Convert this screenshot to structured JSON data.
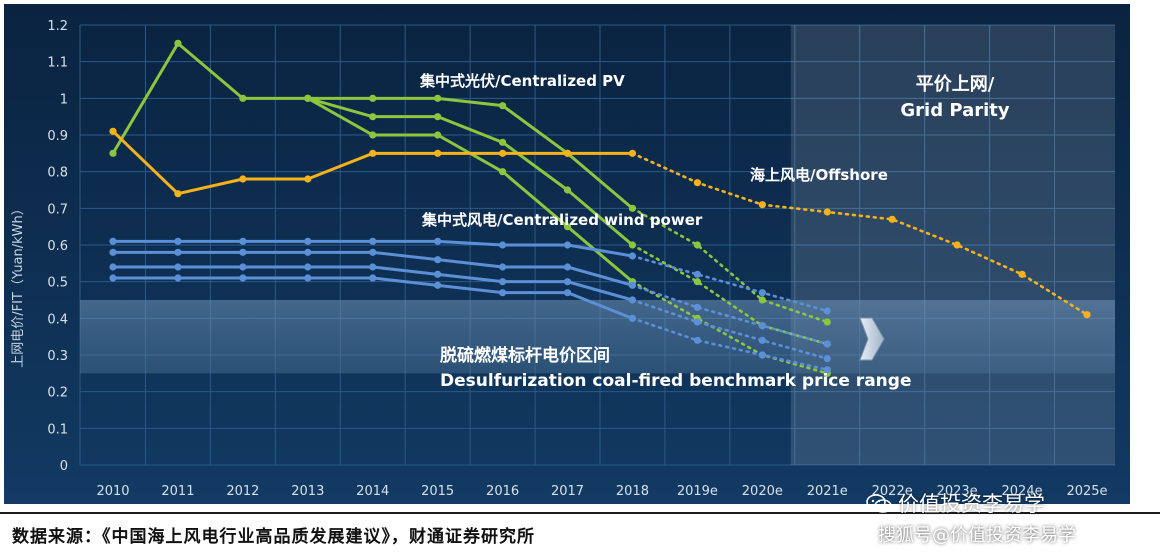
{
  "chart_data": {
    "type": "line",
    "ylabel": "上网电价/FIT（Yuan/kWh）",
    "ylim": [
      0,
      1.2
    ],
    "yticks": [
      "0",
      "0.1",
      "0.2",
      "0.3",
      "0.4",
      "0.5",
      "0.6",
      "0.7",
      "0.8",
      "0.9",
      "1",
      "1.1",
      "1.2"
    ],
    "categories": [
      "2010",
      "2011",
      "2012",
      "2013",
      "2014",
      "2015",
      "2016",
      "2017",
      "2018",
      "2019e",
      "2020e",
      "2021e",
      "2022e",
      "2023e",
      "2024e",
      "2025e"
    ],
    "grid": true,
    "series": [
      {
        "group": "pv",
        "color": "#8cc63f",
        "values": [
          0.85,
          1.15,
          1.0,
          1.0,
          1.0,
          1.0,
          0.98,
          0.85,
          0.7,
          0.6,
          0.45,
          0.39,
          null,
          null,
          null,
          null
        ],
        "forecast_from": 8
      },
      {
        "group": "pv",
        "color": "#8cc63f",
        "values": [
          null,
          null,
          null,
          1.0,
          0.95,
          0.95,
          0.88,
          0.75,
          0.6,
          0.5,
          0.38,
          0.33,
          null,
          null,
          null,
          null
        ],
        "forecast_from": 8
      },
      {
        "group": "pv",
        "color": "#8cc63f",
        "values": [
          null,
          null,
          null,
          1.0,
          0.9,
          0.9,
          0.8,
          0.65,
          0.5,
          0.4,
          0.3,
          0.25,
          null,
          null,
          null,
          null
        ],
        "forecast_from": 8
      },
      {
        "group": "offshore",
        "color": "#f5b21b",
        "values": [
          0.91,
          0.74,
          0.78,
          0.78,
          0.85,
          0.85,
          0.85,
          0.85,
          0.85,
          0.77,
          0.71,
          0.69,
          0.67,
          0.6,
          0.52,
          0.41
        ],
        "forecast_from": 8
      },
      {
        "group": "wind",
        "color": "#5b8fd6",
        "values": [
          0.61,
          0.61,
          0.61,
          0.61,
          0.61,
          0.61,
          0.6,
          0.6,
          0.57,
          0.52,
          0.47,
          0.42,
          null,
          null,
          null,
          null
        ],
        "forecast_from": 8
      },
      {
        "group": "wind",
        "color": "#5b8fd6",
        "values": [
          0.58,
          0.58,
          0.58,
          0.58,
          0.58,
          0.56,
          0.54,
          0.54,
          0.49,
          0.43,
          0.38,
          0.33,
          null,
          null,
          null,
          null
        ],
        "forecast_from": 8
      },
      {
        "group": "wind",
        "color": "#5b8fd6",
        "values": [
          0.54,
          0.54,
          0.54,
          0.54,
          0.54,
          0.52,
          0.5,
          0.5,
          0.45,
          0.39,
          0.34,
          0.29,
          null,
          null,
          null,
          null
        ],
        "forecast_from": 8
      },
      {
        "group": "wind",
        "color": "#5b8fd6",
        "values": [
          0.51,
          0.51,
          0.51,
          0.51,
          0.51,
          0.49,
          0.47,
          0.47,
          0.4,
          0.34,
          0.3,
          0.26,
          null,
          null,
          null,
          null
        ],
        "forecast_from": 8
      }
    ],
    "band": {
      "range": [
        0.25,
        0.45
      ],
      "label_cn": "脱硫燃煤标杆电价区间",
      "label_en": "Desulfurization coal-fired benchmark price range"
    },
    "grid_parity": {
      "from_category": "2021e",
      "label_cn": "平价上网/",
      "label_en": "Grid Parity"
    },
    "annotations": {
      "pv": "集中式光伏/Centralized PV",
      "offshore": "海上风电/Offshore",
      "wind": "集中式风电/Centralized wind power"
    },
    "colors": {
      "background": "#0d2a4a",
      "grid": "#2a5a8a",
      "pv": "#8cc63f",
      "offshore": "#f5b21b",
      "wind": "#5b8fd6"
    }
  },
  "footer": {
    "source": "数据来源：《中国海上风电行业高品质发展建议》，财通证券研究所",
    "watermark_top": "价值投资李易学",
    "watermark_bottom": "搜狐号@价值投资李易学"
  }
}
